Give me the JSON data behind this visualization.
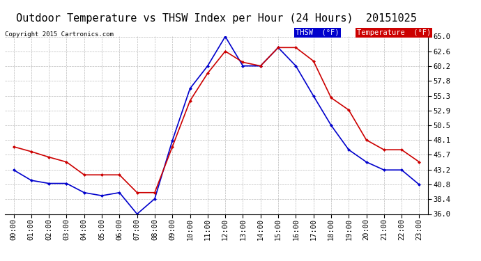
{
  "title": "Outdoor Temperature vs THSW Index per Hour (24 Hours)  20151025",
  "copyright": "Copyright 2015 Cartronics.com",
  "legend_thsw": "THSW  (°F)",
  "legend_temp": "Temperature  (°F)",
  "hours": [
    "00:00",
    "01:00",
    "02:00",
    "03:00",
    "04:00",
    "05:00",
    "06:00",
    "07:00",
    "08:00",
    "09:00",
    "10:00",
    "11:00",
    "12:00",
    "13:00",
    "14:00",
    "15:00",
    "16:00",
    "17:00",
    "18:00",
    "19:00",
    "20:00",
    "21:00",
    "22:00",
    "23:00"
  ],
  "thsw": [
    43.2,
    41.5,
    41.0,
    41.0,
    39.5,
    39.0,
    39.5,
    36.0,
    38.5,
    48.0,
    56.5,
    60.2,
    65.0,
    60.2,
    60.2,
    63.2,
    60.2,
    55.3,
    50.5,
    46.5,
    44.5,
    43.2,
    43.2,
    40.8
  ],
  "temperature": [
    47.0,
    46.2,
    45.3,
    44.5,
    42.4,
    42.4,
    42.4,
    39.5,
    39.5,
    47.0,
    54.5,
    59.0,
    62.6,
    60.8,
    60.2,
    63.2,
    63.2,
    61.0,
    55.0,
    53.0,
    48.1,
    46.5,
    46.5,
    44.5
  ],
  "ylim": [
    36.0,
    65.0
  ],
  "yticks": [
    36.0,
    38.4,
    40.8,
    43.2,
    45.7,
    48.1,
    50.5,
    52.9,
    55.3,
    57.8,
    60.2,
    62.6,
    65.0
  ],
  "thsw_color": "#0000cc",
  "temp_color": "#cc0000",
  "bg_color": "#ffffff",
  "grid_color": "#aaaaaa",
  "title_fontsize": 11,
  "axis_fontsize": 7.5,
  "copyright_fontsize": 6.5
}
